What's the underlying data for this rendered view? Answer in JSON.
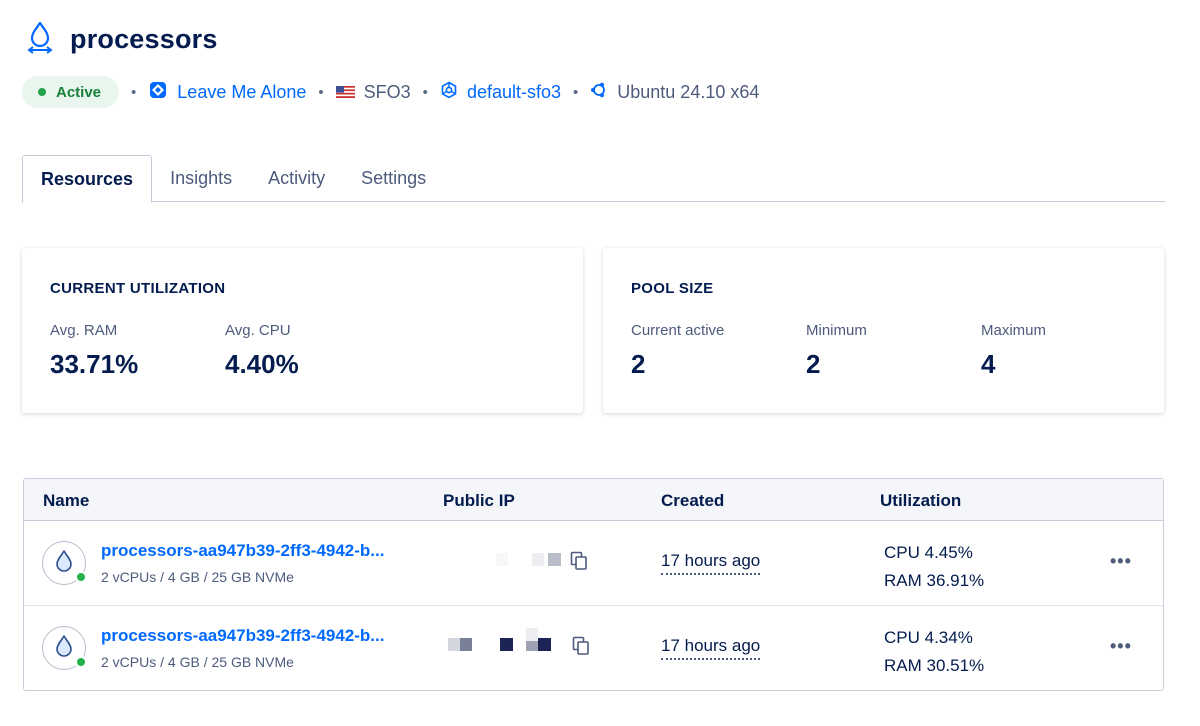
{
  "header": {
    "title": "processors",
    "icon": "droplet-autoscale-icon"
  },
  "meta": {
    "status": "Active",
    "project": "Leave Me Alone",
    "region": "SFO3",
    "vpc": "default-sfo3",
    "image": "Ubuntu 24.10 x64",
    "separator": "•"
  },
  "tabs": [
    {
      "label": "Resources",
      "active": true
    },
    {
      "label": "Insights",
      "active": false
    },
    {
      "label": "Activity",
      "active": false
    },
    {
      "label": "Settings",
      "active": false
    }
  ],
  "utilization": {
    "title": "CURRENT UTILIZATION",
    "ram_label": "Avg. RAM",
    "ram_value": "33.71%",
    "cpu_label": "Avg. CPU",
    "cpu_value": "4.40%"
  },
  "pool": {
    "title": "POOL SIZE",
    "current_label": "Current active",
    "current_value": "2",
    "min_label": "Minimum",
    "min_value": "2",
    "max_label": "Maximum",
    "max_value": "4"
  },
  "table": {
    "columns": [
      "Name",
      "Public IP",
      "Created",
      "Utilization"
    ],
    "rows": [
      {
        "name": "processors-aa947b39-2ff3-4942-b...",
        "spec": "2 vCPUs / 4 GB / 25 GB NVMe",
        "created": "17 hours ago",
        "cpu": "CPU 4.45%",
        "ram": "RAM 36.91%",
        "more": "•••"
      },
      {
        "name": "processors-aa947b39-2ff3-4942-b...",
        "spec": "2 vCPUs / 4 GB / 25 GB NVMe",
        "created": "17 hours ago",
        "cpu": "CPU 4.34%",
        "ram": "RAM 30.51%",
        "more": "•••"
      }
    ]
  },
  "colors": {
    "accent": "#0069ff",
    "text": "#031b4e",
    "status_green": "#22a24a"
  }
}
